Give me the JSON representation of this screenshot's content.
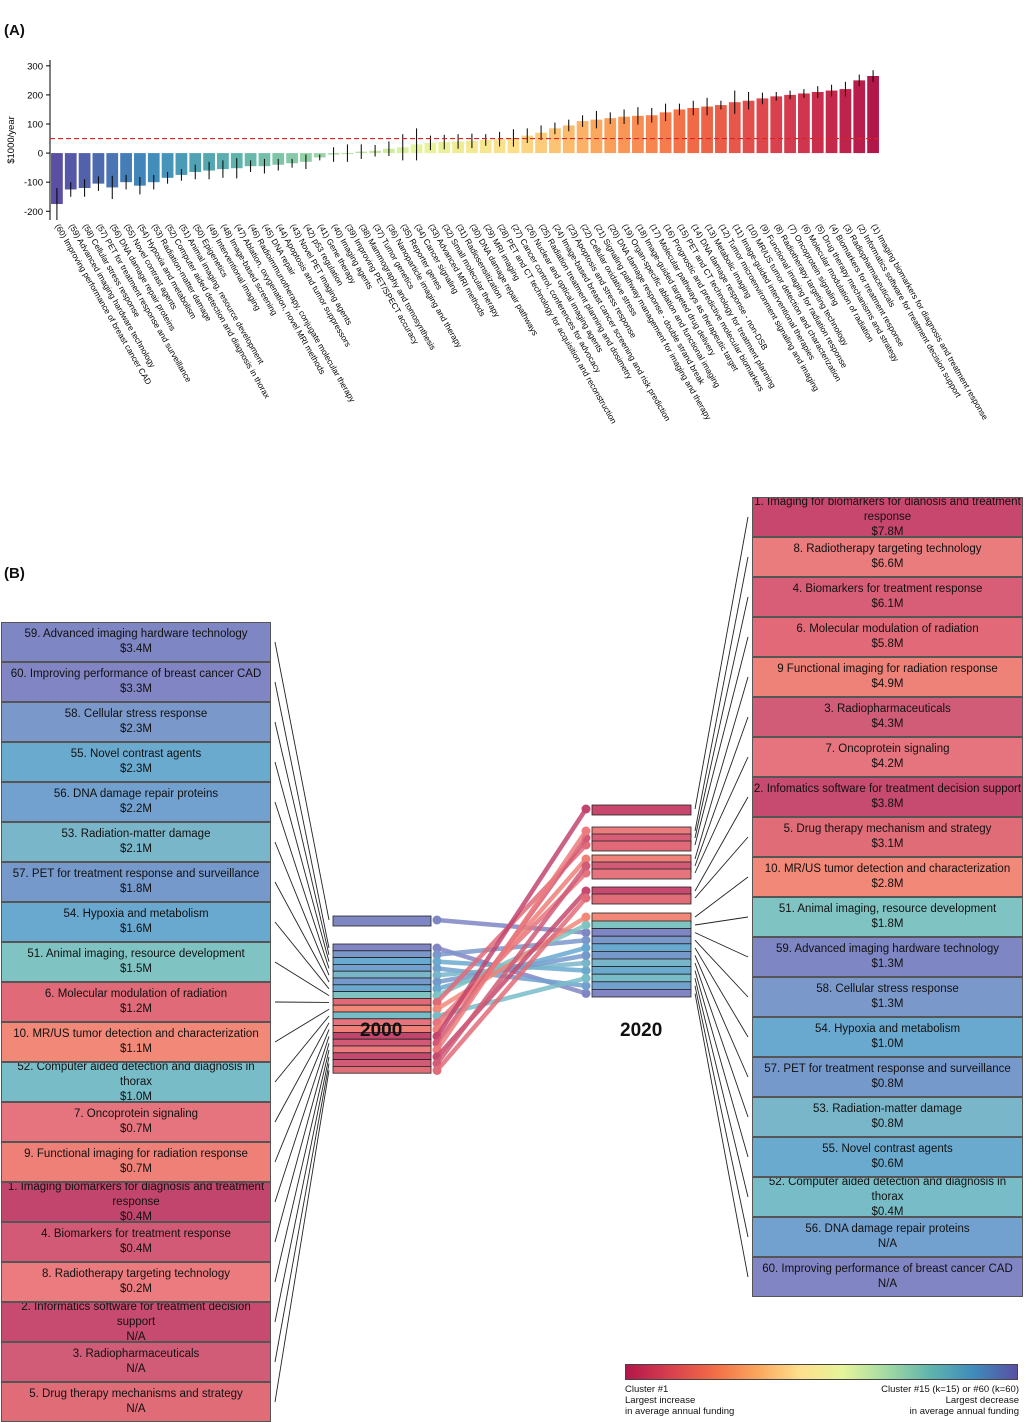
{
  "panel_a_label": "(A)",
  "panel_b_label": "(B)",
  "chart_data": {
    "type": "bar",
    "ylabel": "$1000/year",
    "ylim": [
      -230,
      320
    ],
    "yticks": [
      -200,
      -100,
      0,
      100,
      200,
      300
    ],
    "reference_line": 50,
    "categories": [
      "(60) Improving performance of breast cancer CAD",
      "(59) Advanced imaging hardware technology",
      "(58) Cellular stress response",
      "(57) PET for treatment response and surveillance",
      "(56) DNA damage repair proteins",
      "(55) Novel contrast agents",
      "(54) Hypoxia and metabolism",
      "(53) Radiation-matter damage",
      "(52) Computer aided detection and diagnosis in thorax",
      "(51) Animal imaging, resource development",
      "(50) Epigenetics",
      "(49) Interventional imaging",
      "(48) Image-based screening",
      "(47) Ablation, oxygenation, novel MRI methods",
      "(46) Radioimmunotherapy, conjugate molecular therapy",
      "(45) DNA repair",
      "(44) Apoptosis and tumor suppressors",
      "(43) Novel PET imaging agents",
      "(42) p53 regulation",
      "(41) Gene therapy",
      "(40) Imaging agents",
      "(39) Improving PET/SPECT accuracy",
      "(38) Mammography and tomosynthesis",
      "(37) Tumor genetics",
      "(36) Nanoparticle imaging and therapy",
      "(35) Reporter genes",
      "(34) Cancer signaling",
      "(33) Advanced MRI methods",
      "(32) Small molecular therapy",
      "(31) Radiosensitization",
      "(30) DNA damage repair pathways",
      "(29) MRI imaging",
      "(28) PET and CT technology for acquisition and reconstruction",
      "(27) Cancer control, conferences for advocacy",
      "(26) Nuclear and optical imaging agents",
      "(25) Radiation treatment planning and dosimetry",
      "(24) Image-based breast cancer screening and risk prediction",
      "(23) Apoptosis and stress response",
      "(22) Cellular oxidative stress",
      "(21) Signaling pathway management for imaging and therapy",
      "(20) DNA damage response - double strand break",
      "(19) Organ-specific ablation and functional imaging",
      "(18) Image-guided targeted drug delivery",
      "(17) Molecular pathways as therapeutic target",
      "(16) Prognostic and predictive molecular biomarkers",
      "(15) PET and CT technology for treatment planning",
      "(14) DNA damage response - non-DSB",
      "(13) Metabolic imaging",
      "(12) Tumor microenvironment signaling and imaging",
      "(11) Image-guided interventional therapies",
      "(10) MR/US tumor detection and characterization",
      "(9) Functional imaging for radiation response",
      "(8) Radiotherapy targeting technology",
      "(7) Oncoprotein signaling",
      "(6) Molecular modulation of radiation",
      "(5) Drug therapy mechanisms and strategy",
      "(4) Biomarkers for treatment response",
      "(3) Radiopharmaceuticals",
      "(2) Informatics software for treatment decision support",
      "(1) Imaging biomarkers for diagnosis and treatment response"
    ],
    "values": [
      -175,
      -125,
      -120,
      -105,
      -118,
      -100,
      -112,
      -100,
      -85,
      -75,
      -65,
      -60,
      -55,
      -52,
      -45,
      -45,
      -40,
      -35,
      -30,
      -15,
      -5,
      0,
      5,
      8,
      15,
      20,
      30,
      35,
      38,
      40,
      42,
      45,
      48,
      52,
      60,
      70,
      85,
      95,
      110,
      115,
      120,
      125,
      128,
      130,
      140,
      150,
      155,
      160,
      165,
      175,
      180,
      188,
      195,
      200,
      205,
      210,
      215,
      220,
      250,
      265
    ],
    "errors": [
      55,
      25,
      30,
      25,
      40,
      25,
      30,
      25,
      20,
      20,
      25,
      30,
      30,
      35,
      20,
      25,
      20,
      15,
      25,
      10,
      25,
      30,
      25,
      20,
      25,
      45,
      55,
      25,
      25,
      25,
      25,
      20,
      25,
      30,
      25,
      25,
      20,
      20,
      20,
      30,
      20,
      25,
      30,
      25,
      30,
      20,
      25,
      30,
      15,
      40,
      30,
      20,
      15,
      15,
      15,
      20,
      20,
      25,
      20,
      20
    ]
  },
  "ranking": {
    "left_year": "2000",
    "right_year": "2020",
    "left": [
      {
        "title": "59. Advanced imaging hardware technology",
        "amount": "$3.4M",
        "color": "#7f86c4"
      },
      {
        "title": "60. Improving performance of breast cancer CAD",
        "amount": "$3.3M",
        "color": "#8285c4"
      },
      {
        "title": "58. Cellular stress response",
        "amount": "$2.3M",
        "color": "#7b98cb"
      },
      {
        "title": "55. Novel contrast agents",
        "amount": "$2.3M",
        "color": "#6aaacf"
      },
      {
        "title": "56. DNA damage repair proteins",
        "amount": "$2.2M",
        "color": "#72a1cf"
      },
      {
        "title": "53. Radiation-matter damage",
        "amount": "$2.1M",
        "color": "#79b6c9"
      },
      {
        "title": "57. PET for treatment response and surveillance",
        "amount": "$1.8M",
        "color": "#7699cc"
      },
      {
        "title": "54. Hypoxia and metabolism",
        "amount": "$1.6M",
        "color": "#69a9d0"
      },
      {
        "title": "51. Animal imaging, resource development",
        "amount": "$1.5M",
        "color": "#7fc4c3"
      },
      {
        "title": "6. Molecular modulation of radiation",
        "amount": "$1.2M",
        "color": "#e06a78"
      },
      {
        "title": "10. MR/US tumor detection and characterization",
        "amount": "$1.1M",
        "color": "#f28878"
      },
      {
        "title": "52. Computer aided detection and diagnosis in thorax",
        "amount": "$1.0M",
        "color": "#78bcc8"
      },
      {
        "title": "7. Oncoprotein signaling",
        "amount": "$0.7M",
        "color": "#e6747e"
      },
      {
        "title": "9. Functional imaging for radiation response",
        "amount": "$0.7M",
        "color": "#ee8078"
      },
      {
        "title": "1. Imaging biomarkers for diagnosis and treatment response",
        "amount": "$0.4M",
        "color": "#c2456e"
      },
      {
        "title": "4. Biomarkers for treatment response",
        "amount": "$0.4M",
        "color": "#d35a76"
      },
      {
        "title": "8. Radiotherapy targeting technology",
        "amount": "$0.2M",
        "color": "#eb7b7e"
      },
      {
        "title": "2. Informatics software for treatment decision support",
        "amount": "N/A",
        "color": "#c74a70"
      },
      {
        "title": "3. Radiopharmaceuticals",
        "amount": "N/A",
        "color": "#d05c78"
      },
      {
        "title": "5. Drug therapy mechanisms and strategy",
        "amount": "N/A",
        "color": "#e06c78"
      }
    ],
    "right": [
      {
        "title": "1. Imaging for biomarkers for dianosis and treatment response",
        "amount": "$7.8M",
        "color": "#c8476f"
      },
      {
        "title": "8. Radiotherapy targeting technology",
        "amount": "$6.6M",
        "color": "#ea7c7e"
      },
      {
        "title": "4. Biomarkers for treatment response",
        "amount": "$6.1M",
        "color": "#d85e78"
      },
      {
        "title": "6. Molecular modulation of radiation",
        "amount": "$5.8M",
        "color": "#e26a78"
      },
      {
        "title": "9 Functional imaging for radiation response",
        "amount": "$4.9M",
        "color": "#ef8278"
      },
      {
        "title": "3. Radiopharmaceuticals",
        "amount": "$4.3M",
        "color": "#d05c78"
      },
      {
        "title": "7. Oncoprotein signaling",
        "amount": "$4.2M",
        "color": "#e6747e"
      },
      {
        "title": "2. Infomatics software for treatment decision support",
        "amount": "$3.8M",
        "color": "#c74a70"
      },
      {
        "title": "5. Drug therapy mechanism and strategy",
        "amount": "$3.1M",
        "color": "#e06c78"
      },
      {
        "title": "10. MR/US tumor detection and characterization",
        "amount": "$2.8M",
        "color": "#f28878"
      },
      {
        "title": "51. Animal imaging, resource development",
        "amount": "$1.8M",
        "color": "#7fc4c3"
      },
      {
        "title": "59. Advanced imaging hardware technology",
        "amount": "$1.3M",
        "color": "#7f86c4"
      },
      {
        "title": "58. Cellular stress response",
        "amount": "$1.3M",
        "color": "#7b98cb"
      },
      {
        "title": "54. Hypoxia and metabolism",
        "amount": "$1.0M",
        "color": "#69a9d0"
      },
      {
        "title": "57. PET for treatment response and surveillance",
        "amount": "$0.8M",
        "color": "#7699cc"
      },
      {
        "title": "53. Radiation-matter damage",
        "amount": "$0.8M",
        "color": "#79b6c9"
      },
      {
        "title": "55. Novel contrast agents",
        "amount": "$0.6M",
        "color": "#6aaacf"
      },
      {
        "title": "52. Computer aided detection and diagnosis in thorax",
        "amount": "$0.4M",
        "color": "#78bcc8"
      },
      {
        "title": "56. DNA damage repair proteins",
        "amount": "N/A",
        "color": "#72a1cf"
      },
      {
        "title": "60. Improving performance of breast cancer CAD",
        "amount": "N/A",
        "color": "#8285c4"
      }
    ]
  },
  "colorbar": {
    "left_line1": "Cluster #1",
    "left_line2": "Largest increase",
    "left_line3": "in average annual funding",
    "right_line1": "Cluster #15 (k=15) or #60 (k=60)",
    "right_line2": "Largest decrease",
    "right_line3": "in average annual funding",
    "colors": [
      "#b2174a",
      "#d83e4f",
      "#f26b45",
      "#fba55c",
      "#fde08b",
      "#e5f59b",
      "#a3d9a4",
      "#5fb4ad",
      "#3f8bbc",
      "#5a4fa3"
    ]
  }
}
